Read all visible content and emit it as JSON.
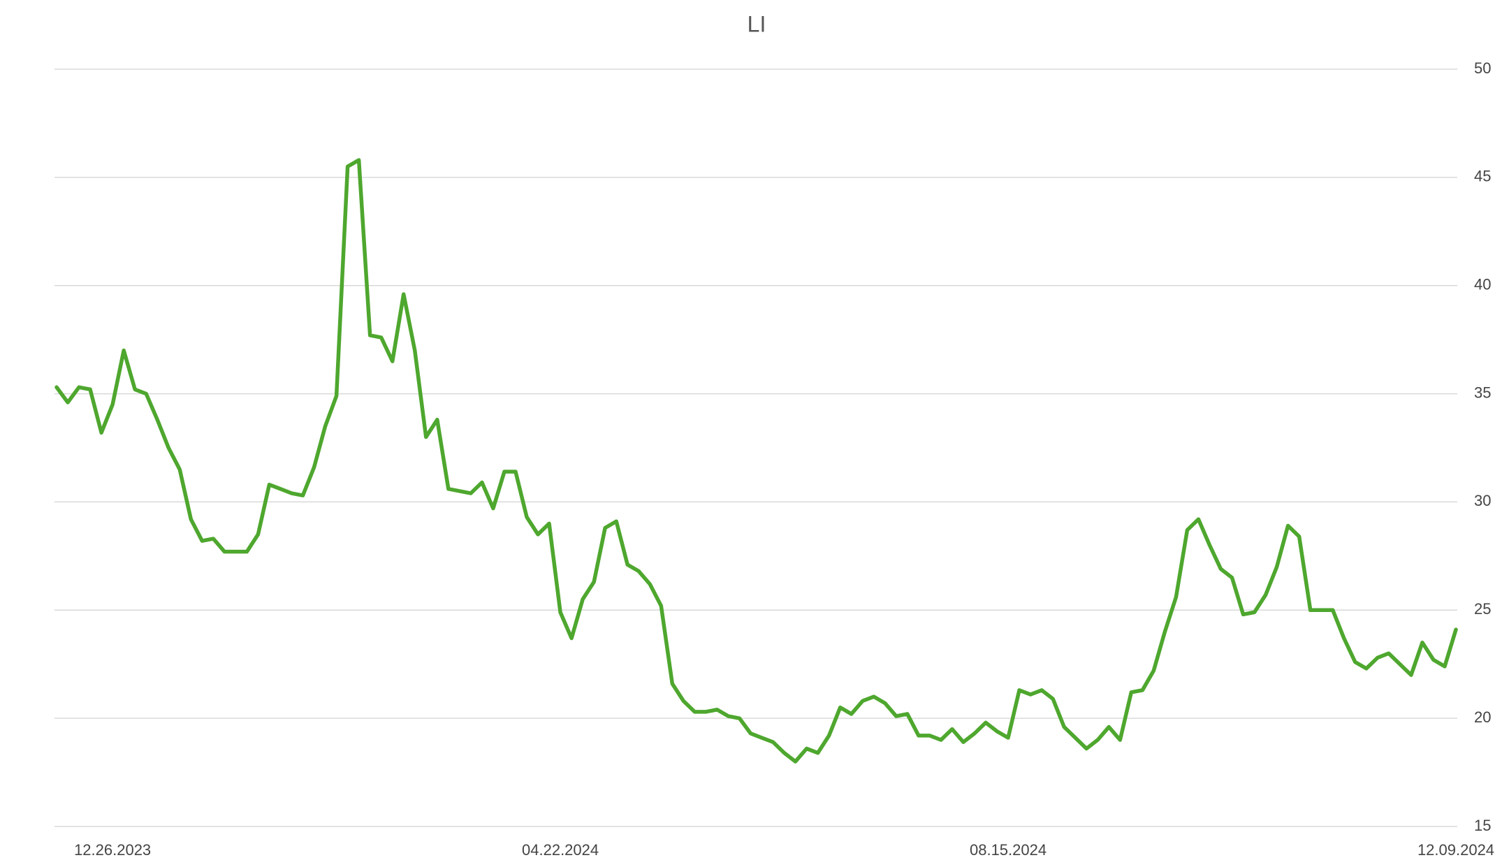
{
  "chart_data": {
    "type": "line",
    "title": "LI",
    "categories": [
      null,
      null,
      null,
      null,
      null,
      "12.26.2023",
      null,
      null,
      null,
      null,
      null,
      null,
      null,
      null,
      null,
      null,
      null,
      null,
      null,
      null,
      null,
      null,
      null,
      null,
      null,
      null,
      null,
      null,
      null,
      null,
      null,
      null,
      null,
      null,
      null,
      null,
      null,
      null,
      null,
      null,
      null,
      null,
      null,
      null,
      null,
      "04.22.2024",
      null,
      null,
      null,
      null,
      null,
      null,
      null,
      null,
      null,
      null,
      null,
      null,
      null,
      null,
      null,
      null,
      null,
      null,
      null,
      null,
      null,
      null,
      null,
      null,
      null,
      null,
      null,
      null,
      null,
      null,
      null,
      null,
      null,
      null,
      null,
      null,
      null,
      null,
      null,
      "08.15.2024",
      null,
      null,
      null,
      null,
      null,
      null,
      null,
      null,
      null,
      null,
      null,
      null,
      null,
      null,
      null,
      null,
      null,
      null,
      null,
      null,
      null,
      null,
      null,
      null,
      null,
      null,
      null,
      null,
      null,
      null,
      null,
      null,
      null,
      null,
      null,
      null,
      null,
      null,
      null,
      "12.09.2024"
    ],
    "series": [
      {
        "name": "LI",
        "color": "#4ea72e",
        "values": [
          35.3,
          34.6,
          35.3,
          35.2,
          33.2,
          34.5,
          37.0,
          35.2,
          35.0,
          33.8,
          32.5,
          31.5,
          29.2,
          28.2,
          28.3,
          27.7,
          27.7,
          27.7,
          28.5,
          30.8,
          30.6,
          30.4,
          30.3,
          31.6,
          33.5,
          34.9,
          45.5,
          45.8,
          37.7,
          37.6,
          36.5,
          39.6,
          37.0,
          33.0,
          33.8,
          30.6,
          30.5,
          30.4,
          30.9,
          29.7,
          31.4,
          31.4,
          29.3,
          28.5,
          29.0,
          24.9,
          23.7,
          25.5,
          26.3,
          28.8,
          29.1,
          27.1,
          26.8,
          26.2,
          25.2,
          21.6,
          20.8,
          20.3,
          20.3,
          20.4,
          20.1,
          20.0,
          19.3,
          19.1,
          18.9,
          18.4,
          18.0,
          18.6,
          18.4,
          19.2,
          20.5,
          20.2,
          20.8,
          21.0,
          20.7,
          20.1,
          20.2,
          19.2,
          19.2,
          19.0,
          19.5,
          18.9,
          19.3,
          19.8,
          19.4,
          19.1,
          21.3,
          21.1,
          21.3,
          20.9,
          19.6,
          19.1,
          18.6,
          19.0,
          19.6,
          19.0,
          21.2,
          21.3,
          22.2,
          24.0,
          25.6,
          28.7,
          29.2,
          28.0,
          26.9,
          26.5,
          24.8,
          24.9,
          25.7,
          27.0,
          28.9,
          28.4,
          25.0,
          25.0,
          25.0,
          23.7,
          22.6,
          22.3,
          22.8,
          23.0,
          22.5,
          22.0,
          23.5,
          22.7,
          22.4,
          24.1
        ]
      }
    ],
    "ylim": [
      15,
      50
    ],
    "yticks": [
      15,
      20,
      25,
      30,
      35,
      40,
      45,
      50
    ],
    "grid": true
  }
}
